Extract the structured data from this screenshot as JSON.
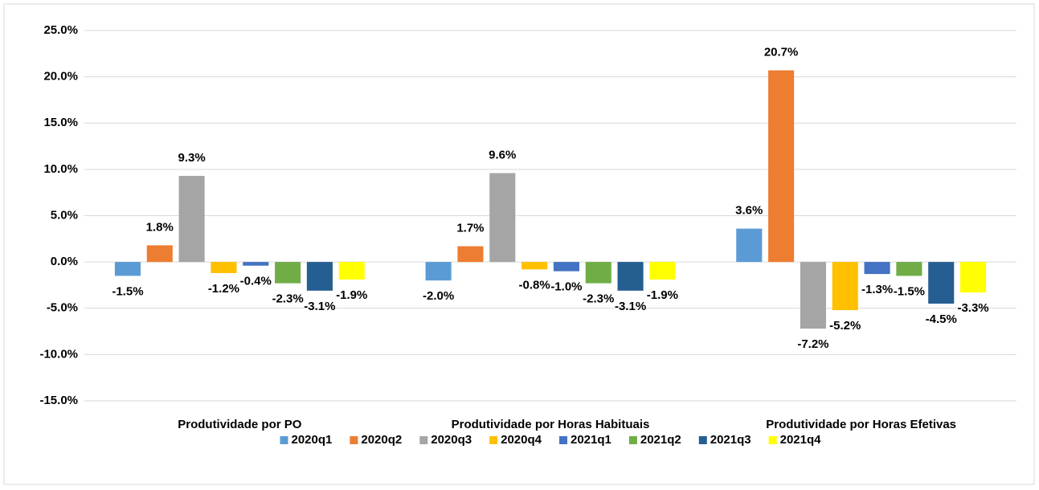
{
  "chart_data": {
    "type": "bar",
    "categories": [
      "Produtividade por PO",
      "Produtividade por Horas Habituais",
      "Produtividade por Horas Efetivas"
    ],
    "series": [
      {
        "name": "2020q1",
        "color": "#5b9bd5",
        "values": [
          -1.5,
          -2.0,
          3.6
        ],
        "value_labels": [
          "-1.5%",
          "-2.0%",
          "3.6%"
        ]
      },
      {
        "name": "2020q2",
        "color": "#ed7d31",
        "values": [
          1.8,
          1.7,
          20.7
        ],
        "value_labels": [
          "1.8%",
          "1.7%",
          "20.7%"
        ]
      },
      {
        "name": "2020q3",
        "color": "#a5a5a5",
        "values": [
          9.3,
          9.6,
          -7.2
        ],
        "value_labels": [
          "9.3%",
          "9.6%",
          "-7.2%"
        ]
      },
      {
        "name": "2020q4",
        "color": "#ffc000",
        "values": [
          -1.2,
          -0.8,
          -5.2
        ],
        "value_labels": [
          "-1.2%",
          "-0.8%",
          "-5.2%"
        ]
      },
      {
        "name": "2021q1",
        "color": "#4472c4",
        "values": [
          -0.4,
          -1.0,
          -1.3
        ],
        "value_labels": [
          "-0.4%",
          "-1.0%",
          "-1.3%"
        ]
      },
      {
        "name": "2021q2",
        "color": "#70ad47",
        "values": [
          -2.3,
          -2.3,
          -1.5
        ],
        "value_labels": [
          "-2.3%",
          "-2.3%",
          "-1.5%"
        ]
      },
      {
        "name": "2021q3",
        "color": "#255e91",
        "values": [
          -3.1,
          -3.1,
          -4.5
        ],
        "value_labels": [
          "-3.1%",
          "-3.1%",
          "-4.5%"
        ]
      },
      {
        "name": "2021q4",
        "color": "#ffff00",
        "values": [
          -1.9,
          -1.9,
          -3.3
        ],
        "value_labels": [
          "-1.9%",
          "-1.9%",
          "-3.3%"
        ]
      }
    ],
    "ylim": [
      -15,
      25
    ],
    "yticks": [
      {
        "value": -15,
        "label": "-15.0%"
      },
      {
        "value": -10,
        "label": "-10.0%"
      },
      {
        "value": -5,
        "label": "-5.0%"
      },
      {
        "value": 0,
        "label": "0.0%"
      },
      {
        "value": 5,
        "label": "5.0%"
      },
      {
        "value": 10,
        "label": "10.0%"
      },
      {
        "value": 15,
        "label": "15.0%"
      },
      {
        "value": 20,
        "label": "20.0%"
      },
      {
        "value": 25,
        "label": "25.0%"
      }
    ],
    "grid": true,
    "legend": "bottom"
  }
}
